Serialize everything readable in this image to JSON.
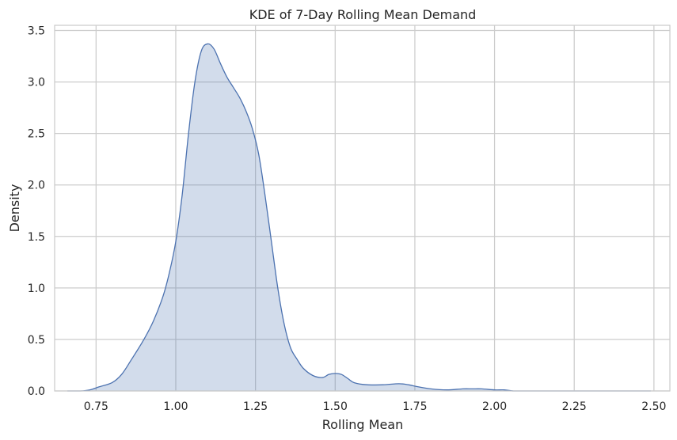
{
  "chart_data": {
    "type": "area",
    "title": "KDE of 7-Day Rolling Mean Demand",
    "xlabel": "Rolling Mean",
    "ylabel": "Density",
    "xlim": [
      0.62,
      2.55
    ],
    "ylim": [
      0,
      3.55
    ],
    "xticks": [
      0.75,
      1.0,
      1.25,
      1.5,
      1.75,
      2.0,
      2.25,
      2.5
    ],
    "xtick_labels": [
      "0.75",
      "1.00",
      "1.25",
      "1.50",
      "1.75",
      "2.00",
      "2.25",
      "2.50"
    ],
    "yticks": [
      0.0,
      0.5,
      1.0,
      1.5,
      2.0,
      2.5,
      3.0,
      3.5
    ],
    "ytick_labels": [
      "0.0",
      "0.5",
      "1.0",
      "1.5",
      "2.0",
      "2.5",
      "3.0",
      "3.5"
    ],
    "grid": true,
    "legend": "none",
    "line_color": "#4c72b0",
    "fill_color": "#4c72b0",
    "fill_alpha": 0.25,
    "x": [
      0.66,
      0.7,
      0.73,
      0.76,
      0.8,
      0.83,
      0.86,
      0.9,
      0.93,
      0.96,
      0.98,
      1.0,
      1.02,
      1.04,
      1.06,
      1.08,
      1.1,
      1.12,
      1.14,
      1.16,
      1.18,
      1.2,
      1.22,
      1.24,
      1.26,
      1.28,
      1.3,
      1.32,
      1.34,
      1.36,
      1.38,
      1.4,
      1.43,
      1.46,
      1.48,
      1.5,
      1.52,
      1.54,
      1.56,
      1.6,
      1.65,
      1.7,
      1.73,
      1.76,
      1.8,
      1.85,
      1.9,
      1.93,
      1.96,
      2.0,
      2.03,
      2.06,
      2.1,
      2.2,
      2.3,
      2.4,
      2.49
    ],
    "y": [
      0.0,
      0.0,
      0.01,
      0.04,
      0.08,
      0.16,
      0.3,
      0.5,
      0.68,
      0.92,
      1.15,
      1.45,
      1.9,
      2.5,
      3.0,
      3.3,
      3.37,
      3.32,
      3.18,
      3.05,
      2.95,
      2.85,
      2.72,
      2.55,
      2.3,
      1.9,
      1.45,
      1.0,
      0.65,
      0.42,
      0.31,
      0.22,
      0.15,
      0.13,
      0.16,
      0.17,
      0.16,
      0.12,
      0.08,
      0.06,
      0.06,
      0.07,
      0.06,
      0.04,
      0.02,
      0.01,
      0.02,
      0.02,
      0.02,
      0.01,
      0.01,
      0.0,
      0.0,
      0.0,
      0.0,
      0.0,
      0.0
    ]
  }
}
